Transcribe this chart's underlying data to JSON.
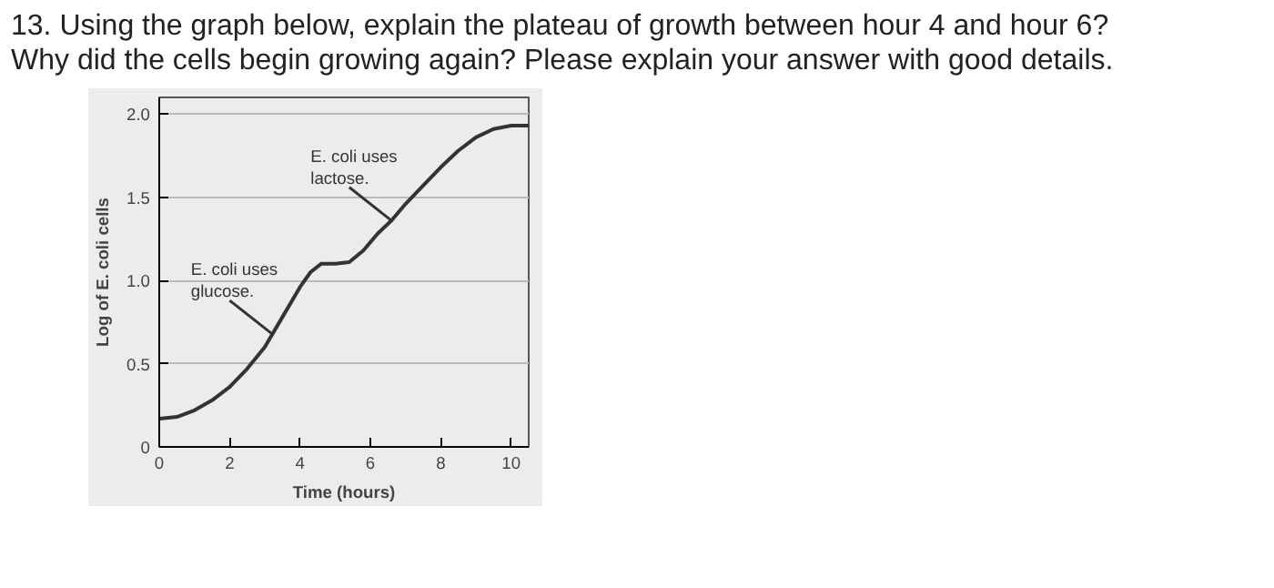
{
  "chart_data": {
    "type": "line",
    "title": "13. Using the graph below, explain the plateau of growth between hour 4 and hour 6?\nWhy did the cells begin growing again? Please explain your answer with good details.",
    "xlabel": "Time (hours)",
    "ylabel": "Log of E. coli cells",
    "x": [
      0,
      0.5,
      1,
      1.5,
      2,
      2.5,
      3,
      3.5,
      4,
      4.3,
      4.6,
      5,
      5.4,
      5.8,
      6.2,
      6.6,
      7,
      7.5,
      8,
      8.5,
      9,
      9.5,
      10,
      10.5
    ],
    "values": [
      0.17,
      0.18,
      0.22,
      0.28,
      0.36,
      0.47,
      0.6,
      0.78,
      0.96,
      1.05,
      1.1,
      1.1,
      1.11,
      1.18,
      1.28,
      1.36,
      1.46,
      1.57,
      1.68,
      1.78,
      1.86,
      1.91,
      1.93,
      1.93
    ],
    "color": "#333333",
    "line_style": "solid",
    "marker": "none",
    "xlim": [
      0,
      10.5
    ],
    "ylim": [
      0,
      2.1
    ],
    "xticks": [
      0,
      2,
      4,
      6,
      8,
      10
    ],
    "yticks": [
      0,
      0.5,
      {
        "value": 1,
        "label": "1.0"
      },
      1.5,
      {
        "value": 2,
        "label": "2.0"
      }
    ],
    "grid": "y",
    "annotations": [
      {
        "text": "E. coli uses\nglucose.",
        "x": 3.2,
        "y": 0.68
      },
      {
        "text": "E. coli uses\nlactose.",
        "x": 6.6,
        "y": 1.36
      }
    ]
  }
}
